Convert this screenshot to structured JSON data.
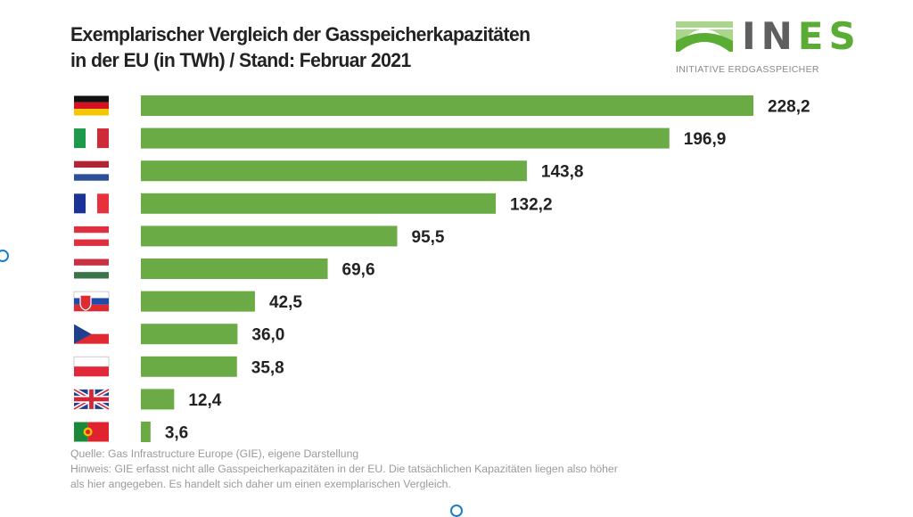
{
  "chart_data": {
    "type": "bar",
    "orientation": "horizontal",
    "title": "Exemplarischer Vergleich der Gasspeicherkapazitäten in der EU (in TWh) / Stand: Februar 2021",
    "title_lines": [
      "Exemplarischer Vergleich der Gasspeicherkapazitäten",
      "in der EU (in TWh) / Stand: Februar 2021"
    ],
    "unit": "TWh",
    "xlabel": "",
    "ylabel": "",
    "xlim": [
      0,
      228.2
    ],
    "grid": false,
    "legend": "none",
    "category_markers": "flags",
    "categories": [
      "Deutschland",
      "Italien",
      "Niederlande",
      "Frankreich",
      "Österreich",
      "Ungarn",
      "Slowakei",
      "Tschechien",
      "Polen",
      "Vereinigtes Königreich",
      "Portugal"
    ],
    "flags": [
      "de",
      "it",
      "nl",
      "fr",
      "at",
      "hu",
      "sk",
      "cz",
      "pl",
      "gb",
      "pt"
    ],
    "values": [
      228.2,
      196.9,
      143.8,
      132.2,
      95.5,
      69.6,
      42.5,
      36.0,
      35.8,
      12.4,
      3.6
    ],
    "value_labels": [
      "228,2",
      "196,9",
      "143,8",
      "132,2",
      "95,5",
      "69,6",
      "42,5",
      "36,0",
      "35,8",
      "12,4",
      "3,6"
    ],
    "bar_color": "#6aab46"
  },
  "logo": {
    "word_part1": "IN",
    "word_part2": "ES",
    "subtitle": "INITIATIVE ERDGASSPEICHER",
    "colors": {
      "gray": "#5f5f5f",
      "green": "#5aac33"
    }
  },
  "footnote": {
    "lines": [
      "Quelle: Gas Infrastructure Europe (GIE), eigene Darstellung",
      "Hinweis: GIE erfasst nicht alle Gasspeicherkapazitäten  in der EU. Die tatsächlichen  Kapazitäten  liegen also höher",
      "als hier angegeben.  Es handelt sich daher um einen exemplarischen Vergleich."
    ]
  }
}
